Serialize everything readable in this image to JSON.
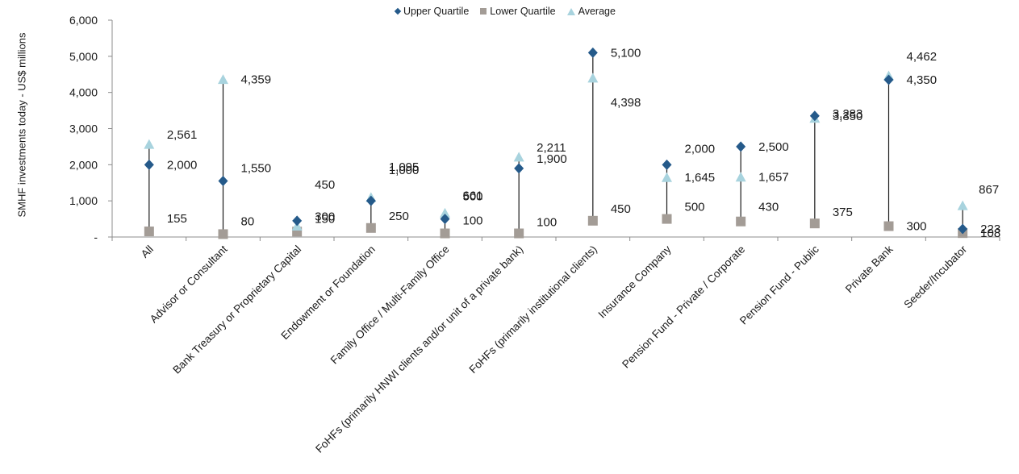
{
  "chart_data": {
    "type": "scatter",
    "ylabel": "SMHF investments today - US$ millions",
    "ylim": [
      0,
      6000
    ],
    "yticks": [
      {
        "value": 0,
        "label": "-"
      },
      {
        "value": 1000,
        "label": "1,000"
      },
      {
        "value": 2000,
        "label": "2,000"
      },
      {
        "value": 3000,
        "label": "3,000"
      },
      {
        "value": 4000,
        "label": "4,000"
      },
      {
        "value": 5000,
        "label": "5,000"
      },
      {
        "value": 6000,
        "label": "6,000"
      }
    ],
    "legend_position": "top-center",
    "categories": [
      "All",
      "Advisor or Consultant",
      "Bank Treasury or Proprietary Capital",
      "Endowment or Foundation",
      "Family Office / Multi-Family Office",
      "FoHFs (primarily HNWI clients and/or unit of a private bank)",
      "FoHFs (primarily institutional clients)",
      "Insurance Company",
      "Pension Fund - Private / Corporate",
      "Pension Fund - Public",
      "Private Bank",
      "Seeder/Incubator"
    ],
    "series": [
      {
        "name": "Upper Quartile",
        "marker": "diamond",
        "color": "#255A8A",
        "values": [
          2000,
          1550,
          450,
          1000,
          500,
          1900,
          5100,
          2000,
          2500,
          3350,
          4350,
          223
        ],
        "labels": [
          "2,000",
          "1,550",
          "450",
          "1,000",
          "500",
          "1,900",
          "5,100",
          "2,000",
          "2,500",
          "3,350",
          "4,350",
          "223"
        ]
      },
      {
        "name": "Lower Quartile",
        "marker": "square",
        "color": "#A39C96",
        "values": [
          155,
          80,
          150,
          250,
          100,
          100,
          450,
          500,
          430,
          375,
          300,
          108
        ],
        "labels": [
          "155",
          "80",
          "150",
          "250",
          "100",
          "100",
          "450",
          "500",
          "430",
          "375",
          "300",
          "108"
        ]
      },
      {
        "name": "Average",
        "marker": "triangle",
        "color": "#A8D3DE",
        "values": [
          2561,
          4359,
          300,
          1095,
          661,
          2211,
          4398,
          1645,
          1657,
          3283,
          4462,
          867
        ],
        "labels": [
          "2,561",
          "4,359",
          "300",
          "1,095",
          "661",
          "2,211",
          "4,398",
          "1,645",
          "1,657",
          "3,283",
          "4,462",
          "867"
        ]
      }
    ],
    "stem_color": "#1a1a1a",
    "grid": false
  }
}
